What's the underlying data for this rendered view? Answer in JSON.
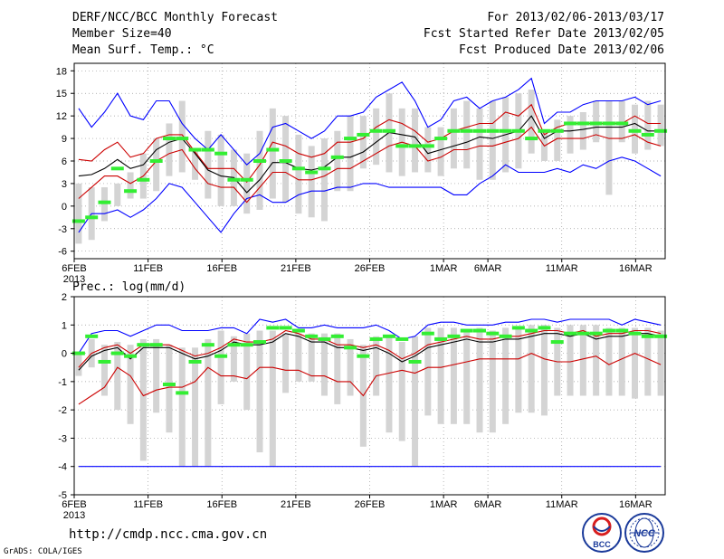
{
  "header": {
    "title": "DERF/NCC/BCC Monthly Forecast",
    "member": "Member Size=40",
    "variable": "Mean Surf. Temp.: °C",
    "period": "For 2013/02/06-2013/03/17",
    "started": "Fcst Started Refer Date 2013/02/05",
    "produced": "Fcst Produced Date 2013/02/06"
  },
  "footer": {
    "url": "http://cmdp.ncc.cma.gov.cn",
    "grads": "GrADS: COLA/IGES",
    "logo_bcc": "BCC",
    "logo_ncc": "NCC"
  },
  "colors": {
    "envelope": "#0000ff",
    "spread": "#cc0000",
    "mean": "#000000",
    "obs": "#33ee33",
    "bar": "#d4d4d4"
  },
  "chart_data": [
    {
      "type": "line",
      "title": "Mean Surf. Temp.: °C",
      "ylim": [
        -7,
        19
      ],
      "yticks": [
        -6,
        -3,
        0,
        3,
        6,
        9,
        12,
        15,
        18
      ],
      "x_range": [
        0,
        40
      ],
      "x_ticks": [
        0,
        5,
        10,
        15,
        20,
        25,
        28,
        33,
        38
      ],
      "x_tick_labels": [
        "6FEB",
        "11FEB",
        "16FEB",
        "21FEB",
        "26FEB",
        "1MAR",
        "6MAR",
        "11MAR",
        "16MAR"
      ],
      "x_year_label": "2013",
      "series": [
        {
          "name": "Max",
          "values": [
            13,
            10.5,
            12.5,
            15,
            12,
            11.5,
            14,
            14,
            11,
            9,
            7.5,
            9.5,
            7.5,
            5.5,
            7,
            10.5,
            11,
            10,
            9,
            10,
            12,
            12,
            12.5,
            14.5,
            15.5,
            16.5,
            14,
            10.5,
            11.5,
            14,
            14.5,
            13,
            14,
            14.5,
            15.5,
            17,
            11,
            12.5,
            12.5,
            13.5,
            14,
            14,
            14,
            14.5,
            13.5,
            14
          ]
        },
        {
          "name": "Upper",
          "values": [
            6.2,
            6,
            7.5,
            8.5,
            6.5,
            7,
            9,
            9.5,
            9.5,
            7.2,
            5,
            5,
            5,
            3.2,
            5.5,
            8.5,
            8,
            7,
            6.5,
            7,
            8.5,
            8.5,
            9,
            10.5,
            11.5,
            11,
            10,
            8.5,
            9,
            10,
            10.5,
            11,
            11,
            12.5,
            12,
            13.5,
            9.5,
            10.5,
            11,
            11,
            11,
            11,
            11,
            12,
            11,
            11
          ]
        },
        {
          "name": "Mean",
          "values": [
            4,
            4.2,
            5,
            6.2,
            5,
            5.5,
            7.5,
            8.5,
            9,
            7,
            4.8,
            4,
            3.8,
            1.8,
            3.5,
            5.8,
            5.8,
            5,
            4.8,
            5.2,
            6.5,
            6.5,
            7.2,
            8.5,
            9.8,
            9.5,
            9.2,
            7,
            7.5,
            8,
            8.5,
            9.2,
            9,
            9.5,
            10,
            12,
            9,
            10,
            10,
            10.2,
            10.5,
            10.5,
            10.5,
            11,
            10,
            10
          ]
        },
        {
          "name": "Lower",
          "values": [
            1,
            2.5,
            4,
            4,
            3,
            4,
            6,
            7,
            7.5,
            5,
            3,
            2.5,
            2.5,
            0.5,
            2.5,
            4.5,
            4.5,
            3.5,
            3.5,
            4,
            5,
            5,
            6,
            7,
            8,
            8.5,
            8,
            6,
            6.5,
            7.5,
            7.5,
            8,
            8,
            8.5,
            9,
            10.5,
            8,
            9,
            9,
            9,
            9.5,
            9,
            9,
            9.5,
            8.5,
            8
          ]
        },
        {
          "name": "Min",
          "values": [
            -3.5,
            -1,
            -1,
            -0.5,
            -1.5,
            -0.5,
            1,
            3,
            2.5,
            0.5,
            -1.5,
            -3.5,
            -1,
            1,
            1.5,
            0.5,
            0.5,
            1.5,
            2,
            2,
            2.5,
            2.5,
            3,
            3,
            2.5,
            2.5,
            2.5,
            2.5,
            2.5,
            1.5,
            1.5,
            3,
            4,
            5.5,
            4.5,
            4.5,
            4.5,
            5,
            4.5,
            5.5,
            5,
            6,
            6.5,
            6,
            5,
            4
          ]
        },
        {
          "name": "Observed",
          "values": [
            -2,
            -1.5,
            0.5,
            5,
            2,
            3.5,
            6,
            9,
            9,
            7.5,
            7.5,
            7,
            3.5,
            3.5,
            6,
            7.5,
            6,
            5,
            4.5,
            5,
            6.5,
            9,
            9.5,
            10,
            10,
            8,
            8,
            8,
            9,
            10,
            10,
            10,
            10,
            10,
            10,
            9,
            10,
            10,
            11,
            11,
            11,
            11,
            11,
            10,
            9.5,
            10
          ]
        },
        {
          "name": "Bar Top",
          "values": [
            3,
            2.5,
            2.5,
            3,
            4.5,
            7,
            9,
            11,
            14,
            7.5,
            10,
            9.5,
            7.5,
            7,
            10,
            13,
            12,
            9.5,
            8,
            9,
            10,
            12,
            12,
            13,
            15,
            13,
            13,
            10.5,
            10.5,
            13,
            14,
            13,
            14,
            14.5,
            15,
            15.5,
            10,
            11.5,
            12,
            12.5,
            14,
            14,
            14,
            13.5,
            14,
            13.5
          ]
        },
        {
          "name": "Bar Bottom",
          "values": [
            -5,
            -4.5,
            -2,
            0,
            1,
            1,
            2,
            4,
            4.5,
            3.5,
            1,
            0,
            0,
            -1,
            -0.5,
            1,
            0.5,
            -1,
            -1.5,
            -2,
            2,
            2,
            5,
            5.5,
            4.5,
            4,
            4.5,
            4.5,
            4,
            5,
            5,
            3.5,
            3.5,
            4.5,
            5,
            7,
            6,
            6,
            7,
            7.5,
            8.5,
            1.5,
            8.5,
            7,
            7.5,
            8
          ]
        }
      ]
    },
    {
      "type": "line",
      "title": "Prec.: log(mm/d)",
      "ylim": [
        -5,
        2
      ],
      "yticks": [
        -5,
        -4,
        -3,
        -2,
        -1,
        0,
        1,
        2
      ],
      "x_range": [
        0,
        40
      ],
      "x_ticks": [
        0,
        5,
        10,
        15,
        20,
        25,
        28,
        33,
        38
      ],
      "x_tick_labels": [
        "6FEB",
        "11FEB",
        "16FEB",
        "21FEB",
        "26FEB",
        "1MAR",
        "6MAR",
        "11MAR",
        "16MAR"
      ],
      "x_year_label": "2013",
      "series": [
        {
          "name": "Max",
          "values": [
            0,
            0.7,
            0.8,
            0.8,
            0.6,
            0.8,
            1,
            1,
            0.8,
            0.8,
            0.8,
            0.9,
            0.9,
            0.7,
            1.2,
            1.1,
            1.2,
            0.9,
            0.9,
            1,
            0.9,
            0.9,
            0.9,
            1,
            0.8,
            0.5,
            0.6,
            1,
            1.1,
            1.1,
            1,
            1,
            1,
            1.1,
            1.1,
            1.2,
            1.2,
            1.1,
            1.2,
            1.2,
            1.2,
            1.2,
            1,
            1.2,
            1.1,
            1
          ]
        },
        {
          "name": "Upper",
          "values": [
            -0.5,
            0,
            0.2,
            0.3,
            0,
            0.3,
            0.3,
            0.3,
            0.1,
            -0.1,
            0,
            0.2,
            0.5,
            0.4,
            0.4,
            0.5,
            0.8,
            0.7,
            0.5,
            0.5,
            0.3,
            0.3,
            0.2,
            0.3,
            0.1,
            -0.2,
            0,
            0.3,
            0.4,
            0.5,
            0.6,
            0.5,
            0.5,
            0.6,
            0.6,
            0.7,
            0.8,
            0.8,
            0.7,
            0.8,
            0.6,
            0.7,
            0.7,
            0.8,
            0.8,
            0.7
          ]
        },
        {
          "name": "Mean",
          "values": [
            -0.6,
            -0.1,
            0.1,
            0.2,
            -0.2,
            0.2,
            0.2,
            0.2,
            0,
            -0.2,
            -0.1,
            0.1,
            0.4,
            0.3,
            0.3,
            0.4,
            0.7,
            0.6,
            0.4,
            0.4,
            0.2,
            0.2,
            0.1,
            0.2,
            0,
            -0.3,
            -0.1,
            0.2,
            0.3,
            0.4,
            0.5,
            0.4,
            0.4,
            0.5,
            0.5,
            0.6,
            0.7,
            0.7,
            0.6,
            0.7,
            0.5,
            0.6,
            0.6,
            0.7,
            0.7,
            0.6
          ]
        },
        {
          "name": "Lower",
          "values": [
            -1.8,
            -1.5,
            -1.2,
            -0.5,
            -0.8,
            -1.5,
            -1.3,
            -1.2,
            -1.2,
            -1,
            -0.5,
            -0.8,
            -0.8,
            -0.9,
            -0.5,
            -0.5,
            -0.6,
            -0.6,
            -0.8,
            -0.8,
            -1,
            -1,
            -1.5,
            -0.8,
            -0.7,
            -0.6,
            -0.7,
            -0.5,
            -0.5,
            -0.4,
            -0.3,
            -0.2,
            -0.2,
            -0.2,
            -0.2,
            0,
            -0.2,
            -0.3,
            -0.3,
            -0.2,
            -0.1,
            -0.4,
            -0.2,
            0,
            -0.2,
            -0.4
          ]
        },
        {
          "name": "Min",
          "values": [
            -4,
            -4,
            -4,
            -4,
            -4,
            -4,
            -4,
            -4,
            -4,
            -4,
            -4,
            -4,
            -4,
            -4,
            -4,
            -4,
            -4,
            -4,
            -4,
            -4,
            -4,
            -4,
            -4,
            -4,
            -4,
            -4,
            -4,
            -4,
            -4,
            -4,
            -4,
            -4,
            -4,
            -4,
            -4,
            -4,
            -4,
            -4,
            -4,
            -4,
            -4,
            -4,
            -4,
            -4,
            -4,
            -4
          ]
        },
        {
          "name": "Observed",
          "values": [
            0,
            0.6,
            -0.3,
            0,
            -0.1,
            0.3,
            0.3,
            -1.1,
            -1.4,
            -0.3,
            0.3,
            -0.1,
            0.3,
            0.3,
            0.4,
            0.9,
            0.9,
            0.8,
            0.6,
            0.5,
            0.6,
            0.2,
            -0.1,
            0.5,
            0.6,
            0.5,
            -0.3,
            0.7,
            0.5,
            0.6,
            0.8,
            0.8,
            0.7,
            0.6,
            0.9,
            0.8,
            0.9,
            0.4,
            0.7,
            0.7,
            0.7,
            0.8,
            0.8,
            0.7,
            0.6,
            0.6
          ]
        },
        {
          "name": "Bar Top",
          "values": [
            0,
            0.5,
            0.3,
            0.4,
            0.3,
            0.5,
            0.5,
            0.3,
            0.2,
            0.2,
            0.5,
            0.8,
            0.6,
            0.7,
            0.8,
            0.8,
            0.7,
            0.7,
            0.7,
            0.7,
            0.7,
            0.5,
            0.3,
            0.6,
            0.6,
            0.4,
            0.6,
            0.9,
            0.9,
            0.9,
            0.8,
            0.9,
            0.8,
            0.9,
            0.9,
            1,
            1,
            0.9,
            1,
            1,
            1,
            0.9,
            0.9,
            0.9,
            0.9,
            0.8
          ]
        },
        {
          "name": "Bar Bottom",
          "values": [
            -0.8,
            -0.5,
            -1.5,
            -2,
            -2.5,
            -3.8,
            -2.1,
            -2.8,
            -4,
            -4,
            -4,
            -1.8,
            -1,
            -2,
            -3.5,
            -4,
            -1.4,
            -1,
            -1,
            -1.5,
            -1.8,
            -1.5,
            -3.3,
            -1.5,
            -2.8,
            -3.1,
            -4,
            -2.2,
            -2.5,
            -2.5,
            -2.5,
            -2.8,
            -2.8,
            -2.5,
            -2.1,
            -2.1,
            -2.2,
            -1.5,
            -1.5,
            -1.5,
            -1.5,
            -1.5,
            -1.5,
            -1.6,
            -1.5,
            -1.5
          ]
        }
      ]
    }
  ]
}
